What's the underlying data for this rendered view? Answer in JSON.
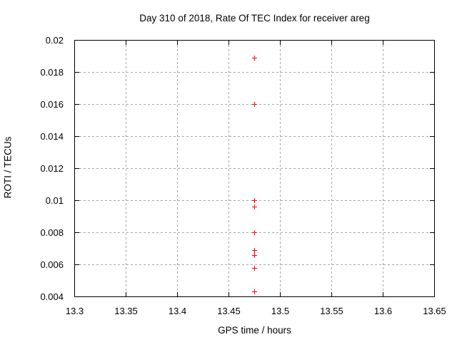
{
  "figure": {
    "background": "#ffffff",
    "axis_color": "#000000"
  },
  "chart_data": {
    "type": "scatter",
    "title": "Day 310 of 2018, Rate Of TEC Index for receiver areg",
    "xlabel": "GPS time / hours",
    "ylabel": "ROTI / TECUs",
    "xlim": [
      13.3,
      13.65
    ],
    "ylim": [
      0.004,
      0.02
    ],
    "xticks": [
      13.3,
      13.35,
      13.4,
      13.45,
      13.5,
      13.55,
      13.6,
      13.65
    ],
    "yticks": [
      0.004,
      0.006,
      0.008,
      0.01,
      0.012,
      0.014,
      0.016,
      0.018,
      0.02
    ],
    "grid": true,
    "grid_style": "dashed",
    "grid_color": "#a6a6a6",
    "legend": "none",
    "series": [
      {
        "name": "ROTI",
        "marker": "plus",
        "color": "#ff0000",
        "x": [
          13.475,
          13.475,
          13.475,
          13.475,
          13.475,
          13.475,
          13.475,
          13.475,
          13.475
        ],
        "y": [
          0.0189,
          0.016,
          0.01,
          0.0096,
          0.008,
          0.0069,
          0.0066,
          0.0058,
          0.0043
        ]
      }
    ]
  }
}
